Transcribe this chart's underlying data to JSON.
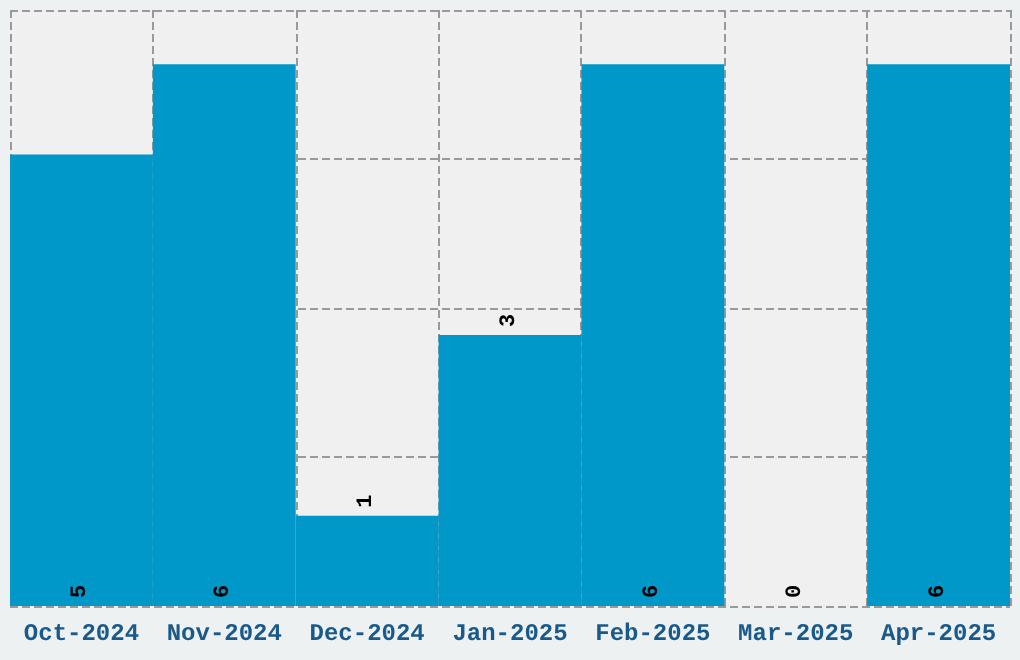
{
  "chart_data": {
    "type": "bar",
    "categories": [
      "Oct-2024",
      "Nov-2024",
      "Dec-2024",
      "Jan-2025",
      "Feb-2025",
      "Mar-2025",
      "Apr-2025"
    ],
    "values": [
      5,
      6,
      1,
      3,
      6,
      0,
      6
    ],
    "color": "#0098c8",
    "data_labels": true,
    "grid": true,
    "tick_labels": "x",
    "ylim": [
      0,
      6.6
    ],
    "yticks": [
      {
        "value": 0,
        "label": null
      },
      {
        "value": 1.65,
        "label": null
      },
      {
        "value": 3.3,
        "label": null
      },
      {
        "value": 4.95,
        "label": null
      },
      {
        "value": 6.6,
        "label": null
      }
    ]
  }
}
